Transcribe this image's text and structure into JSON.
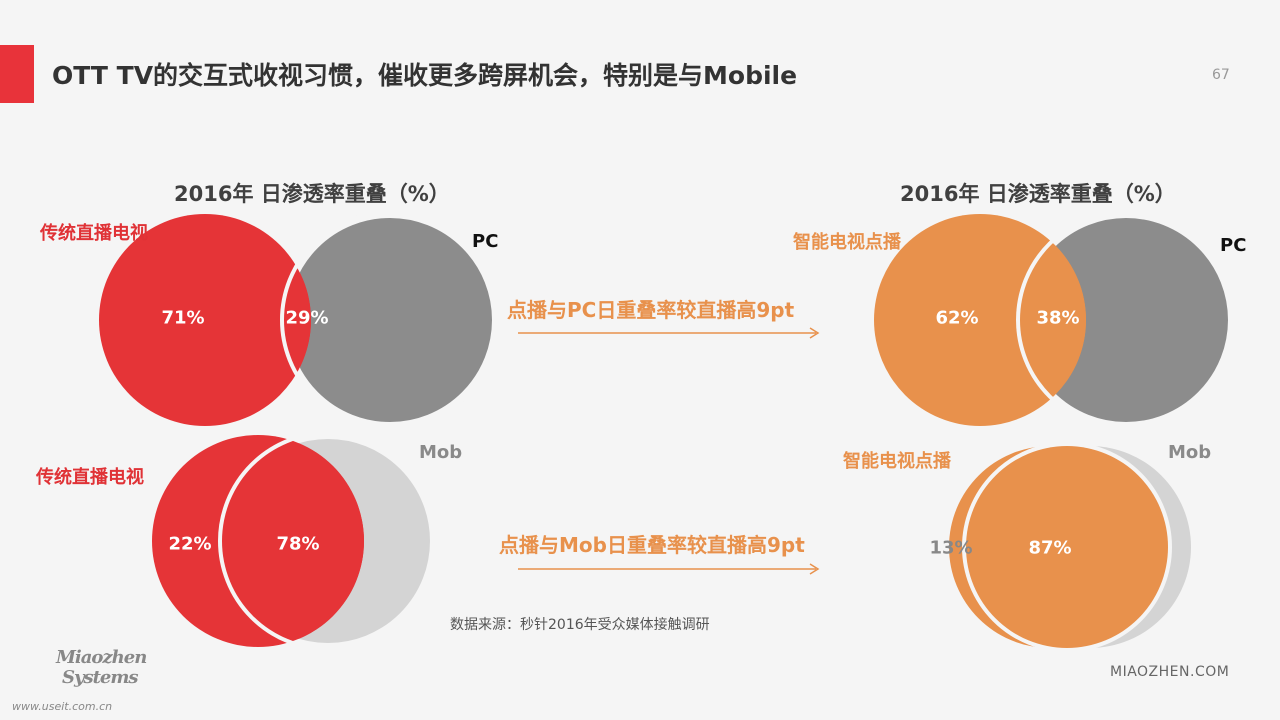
{
  "page": {
    "title": "OTT TV的交互式收视习惯，催收更多跨屏机会，特别是与Mobile",
    "page_number": "67"
  },
  "left_panel": {
    "title": "2016年 日渗透率重叠（%）"
  },
  "right_panel": {
    "title": "2016年 日渗透率重叠（%）"
  },
  "venns": [
    {
      "name": "live-tv-pc",
      "left_label": "传统直播电视",
      "right_label": "PC",
      "left_only_pct": "71%",
      "overlap_pct": "29%",
      "left_color": "#e53437",
      "right_color": "#8c8c8c"
    },
    {
      "name": "live-tv-mobile",
      "left_label": "传统直播电视",
      "right_label": "Mob",
      "left_only_pct": "22%",
      "overlap_pct": "78%",
      "left_color": "#e53437",
      "right_color": "#d4d4d4"
    },
    {
      "name": "vod-pc",
      "left_label": "智能电视点播",
      "right_label": "PC",
      "left_only_pct": "62%",
      "overlap_pct": "38%",
      "left_color": "#e8914c",
      "right_color": "#8c8c8c"
    },
    {
      "name": "vod-mobile",
      "left_label": "智能电视点播",
      "right_label": "Mob",
      "left_only_pct": "13%",
      "overlap_pct": "87%",
      "left_color": "#e8914c",
      "right_color": "#d4d4d4"
    }
  ],
  "comparisons": [
    {
      "text": "点播与PC日重叠率较直播高9pt"
    },
    {
      "text": "点播与Mob日重叠率较直播高9pt"
    }
  ],
  "source": "数据来源：秒针2016年受众媒体接触调研",
  "logo": {
    "line1": "Miaozhen",
    "line2": "Systems",
    "url": "www.useit.com.cn"
  },
  "footer_brand": "MIAOZHEN.COM",
  "colors": {
    "accent": "#e8333a",
    "tv_red": "#e53437",
    "vod_orange": "#e8914c",
    "pc_gray": "#8c8c8c",
    "mobile_gray": "#d4d4d4"
  }
}
